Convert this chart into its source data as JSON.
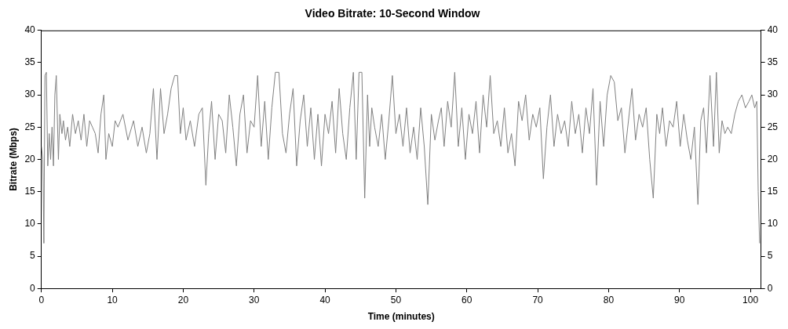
{
  "chart_data": {
    "type": "line",
    "title": "Video Bitrate: 10-Second Window",
    "xlabel": "Time (minutes)",
    "ylabel": "Bitrate (Mbps)",
    "xlim": [
      0,
      101.5
    ],
    "xticks": [
      0,
      10,
      20,
      30,
      40,
      50,
      60,
      70,
      80,
      90,
      100
    ],
    "ylim": [
      0,
      40
    ],
    "yticks": [
      0,
      5,
      10,
      15,
      20,
      25,
      30,
      35,
      40
    ],
    "y2lim": [
      0,
      40
    ],
    "y2ticks": [
      0,
      5,
      10,
      15,
      20,
      25,
      30,
      35,
      40
    ],
    "grid": false,
    "legend": false,
    "marker": "none",
    "line_style": "solid",
    "series": [
      {
        "color": "#808080",
        "x": [
          0,
          0.2,
          0.35,
          0.5,
          0.7,
          0.9,
          1.1,
          1.3,
          1.5,
          1.7,
          1.9,
          2.1,
          2.4,
          2.6,
          2.9,
          3.1,
          3.4,
          3.7,
          4,
          4.4,
          4.8,
          5.2,
          5.6,
          6,
          6.4,
          6.8,
          7.2,
          7.6,
          8,
          8.4,
          8.8,
          9.1,
          9.5,
          10,
          10.4,
          10.8,
          11.5,
          12.2,
          13,
          13.6,
          14.2,
          14.8,
          15.3,
          15.8,
          16.3,
          16.8,
          17.3,
          17.8,
          18.3,
          18.8,
          19.2,
          19.6,
          20,
          20.4,
          21,
          21.6,
          22.2,
          22.7,
          23.2,
          23.6,
          24,
          24.5,
          25,
          25.5,
          26,
          26.5,
          27,
          27.5,
          28,
          28.5,
          29,
          29.5,
          30,
          30.5,
          31,
          31.5,
          32,
          32.5,
          33,
          33.5,
          34,
          34.5,
          35,
          35.5,
          36,
          36.5,
          37,
          37.5,
          38,
          38.5,
          39,
          39.5,
          40,
          40.5,
          41,
          41.5,
          42,
          42.5,
          43,
          43.5,
          44,
          44.4,
          44.8,
          45.2,
          45.6,
          46,
          46.3,
          46.6,
          47,
          47.5,
          48,
          48.5,
          49,
          49.5,
          50,
          50.5,
          51,
          51.5,
          52,
          52.5,
          53,
          53.5,
          54,
          54.5,
          55,
          55.5,
          56,
          56.4,
          56.8,
          57.3,
          57.8,
          58.3,
          58.8,
          59.3,
          59.8,
          60.3,
          60.8,
          61.3,
          61.8,
          62.3,
          62.8,
          63.3,
          63.8,
          64.3,
          64.8,
          65.3,
          65.8,
          66.3,
          66.8,
          67.3,
          67.8,
          68.3,
          68.8,
          69.3,
          69.8,
          70.3,
          70.8,
          71.3,
          71.8,
          72.3,
          72.8,
          73.3,
          73.8,
          74.3,
          74.8,
          75.3,
          75.8,
          76.3,
          76.8,
          77.3,
          77.8,
          78.3,
          78.8,
          79.3,
          79.8,
          80.3,
          80.8,
          81.3,
          81.8,
          82.3,
          82.8,
          83.3,
          83.8,
          84.3,
          84.8,
          85.3,
          85.8,
          86.3,
          86.8,
          87.2,
          87.6,
          88.1,
          88.6,
          89.1,
          89.6,
          90.1,
          90.6,
          91.1,
          91.6,
          92.1,
          92.6,
          93,
          93.4,
          93.8,
          94.3,
          94.8,
          95.2,
          95.6,
          96,
          96.4,
          96.8,
          97.3,
          97.8,
          98.3,
          98.8,
          99.3,
          99.8,
          100.2,
          100.6,
          100.9,
          101.1,
          101.3
        ],
        "values": [
          22,
          20,
          7,
          33,
          33.5,
          19,
          24,
          20,
          25,
          19,
          30,
          33,
          20,
          27,
          24,
          26,
          23,
          25,
          22,
          27,
          24,
          26,
          23,
          27,
          22,
          26,
          25,
          24,
          21,
          27,
          30,
          20,
          24,
          22,
          26,
          25,
          27,
          23,
          26,
          22,
          25,
          21,
          24,
          31,
          20,
          31,
          24,
          27,
          31,
          33,
          33,
          24,
          28,
          23,
          26,
          22,
          27,
          28,
          16,
          24,
          29,
          20,
          27,
          26,
          21,
          30,
          25,
          19,
          27,
          30,
          21,
          26,
          25,
          33,
          22,
          29,
          20,
          28,
          33.5,
          33.5,
          24,
          21,
          27,
          31,
          19,
          26,
          30,
          22,
          28,
          20,
          27,
          19,
          27,
          24,
          29,
          21,
          31,
          24,
          20,
          28,
          33.5,
          20,
          33.5,
          33.5,
          14,
          30,
          22,
          28,
          25,
          22,
          27,
          20,
          26,
          33,
          24,
          27,
          22,
          28,
          21,
          25,
          20,
          28,
          22,
          13,
          27,
          23,
          26,
          28,
          22,
          29,
          25,
          33.5,
          22,
          28,
          20,
          27,
          24,
          29,
          21,
          30,
          25,
          33,
          24,
          26,
          22,
          28,
          21,
          24,
          19,
          29,
          26,
          30,
          23,
          27,
          25,
          28,
          17,
          25,
          30,
          22,
          27,
          24,
          26,
          22,
          29,
          24,
          27,
          21,
          28,
          24,
          31,
          16,
          29,
          22,
          30,
          33,
          32,
          26,
          28,
          21,
          26,
          31,
          23,
          27,
          25,
          28,
          20,
          14,
          27,
          24,
          28,
          22,
          26,
          25,
          29,
          22,
          27,
          23,
          20,
          25,
          13,
          26,
          28,
          21,
          33,
          22,
          33.5,
          21,
          26,
          24,
          25,
          24,
          27,
          29,
          30,
          28,
          29,
          30,
          28,
          29,
          15,
          7
        ]
      }
    ]
  }
}
